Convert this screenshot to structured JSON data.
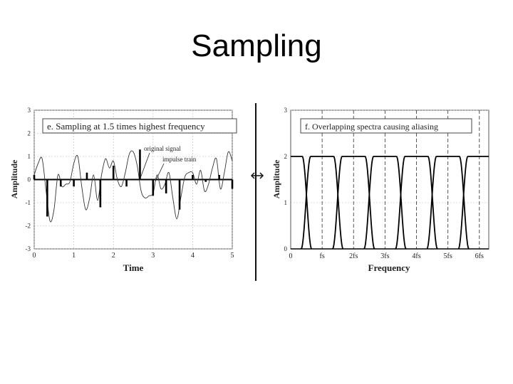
{
  "slide": {
    "title": "Sampling"
  },
  "chart_data": [
    {
      "type": "line",
      "title": "e.  Sampling at 1.5 times highest frequency",
      "xlabel": "Time",
      "ylabel": "Amplitude",
      "xlim": [
        0,
        5
      ],
      "ylim": [
        -3,
        3
      ],
      "xticks": [
        "0",
        "1",
        "2",
        "3",
        "4",
        "5"
      ],
      "yticks": [
        "-3",
        "-2",
        "-1",
        "0",
        "1",
        "2",
        "3"
      ],
      "grid": true,
      "annotations": [
        "original signal",
        "impulse train"
      ],
      "series": [
        {
          "name": "original signal",
          "x": [
            0,
            0.1,
            0.2,
            0.3,
            0.4,
            0.5,
            0.6,
            0.7,
            0.8,
            0.9,
            1.0,
            1.1,
            1.2,
            1.3,
            1.4,
            1.5,
            1.6,
            1.7,
            1.8,
            1.9,
            2.0,
            2.1,
            2.2,
            2.3,
            2.4,
            2.5,
            2.6,
            2.7,
            2.8,
            2.9,
            3.0,
            3.1,
            3.2,
            3.3,
            3.4,
            3.5,
            3.6,
            3.7,
            3.8,
            3.9,
            4.0,
            4.1,
            4.2,
            4.3,
            4.4,
            4.5,
            4.6,
            4.7,
            4.8,
            4.9,
            5.0
          ],
          "y": [
            0.2,
            0.7,
            0.9,
            -0.5,
            -1.8,
            -1.3,
            0.2,
            -0.3,
            -0.2,
            -0.1,
            0.7,
            1.0,
            -0.3,
            -1.3,
            -0.8,
            0.2,
            -0.9,
            0.2,
            0.9,
            0.5,
            0.8,
            0.0,
            -0.3,
            0.3,
            1.1,
            1.2,
            0.6,
            -0.5,
            -0.8,
            -0.7,
            -0.6,
            0.2,
            -0.4,
            -0.2,
            0.3,
            -0.8,
            -1.7,
            -0.8,
            0.1,
            0.3,
            0.3,
            -0.2,
            0.4,
            -0.5,
            -0.2,
            0.5,
            0.9,
            -0.4,
            0.3,
            1.2,
            0.8
          ]
        },
        {
          "name": "impulse train",
          "x": [
            0.0,
            0.33,
            0.67,
            1.0,
            1.33,
            1.67,
            2.0,
            2.33,
            2.67,
            3.0,
            3.33,
            3.67,
            4.0,
            4.33,
            4.67,
            5.0
          ],
          "y": [
            0.2,
            -1.6,
            -0.3,
            -0.3,
            0.3,
            -1.2,
            0.6,
            -0.3,
            1.3,
            -0.7,
            -0.6,
            -1.3,
            0.2,
            -0.1,
            0.2,
            -0.4
          ]
        }
      ]
    },
    {
      "type": "line",
      "title": "f.  Overlapping spectra causing aliasing",
      "xlabel": "Frequency",
      "ylabel": "Amplitude",
      "xlim": [
        0,
        6.3
      ],
      "ylim": [
        0,
        3
      ],
      "xticks": [
        "0",
        "fs",
        "2fs",
        "3fs",
        "4fs",
        "5fs",
        "6fs"
      ],
      "yticks": [
        "0",
        "1",
        "2",
        "3"
      ],
      "grid": true,
      "sampling_multiples": [
        1,
        2,
        3,
        4,
        5,
        6
      ],
      "passband_amplitude": 2,
      "highest_frequency_over_fs": 0.667,
      "series": [
        {
          "name": "",
          "center": 0
        },
        {
          "name": "",
          "center": 1
        },
        {
          "name": "",
          "center": 2
        },
        {
          "name": "",
          "center": 3
        },
        {
          "name": "",
          "center": 4
        },
        {
          "name": "",
          "center": 5
        },
        {
          "name": "",
          "center": 6
        }
      ]
    }
  ]
}
